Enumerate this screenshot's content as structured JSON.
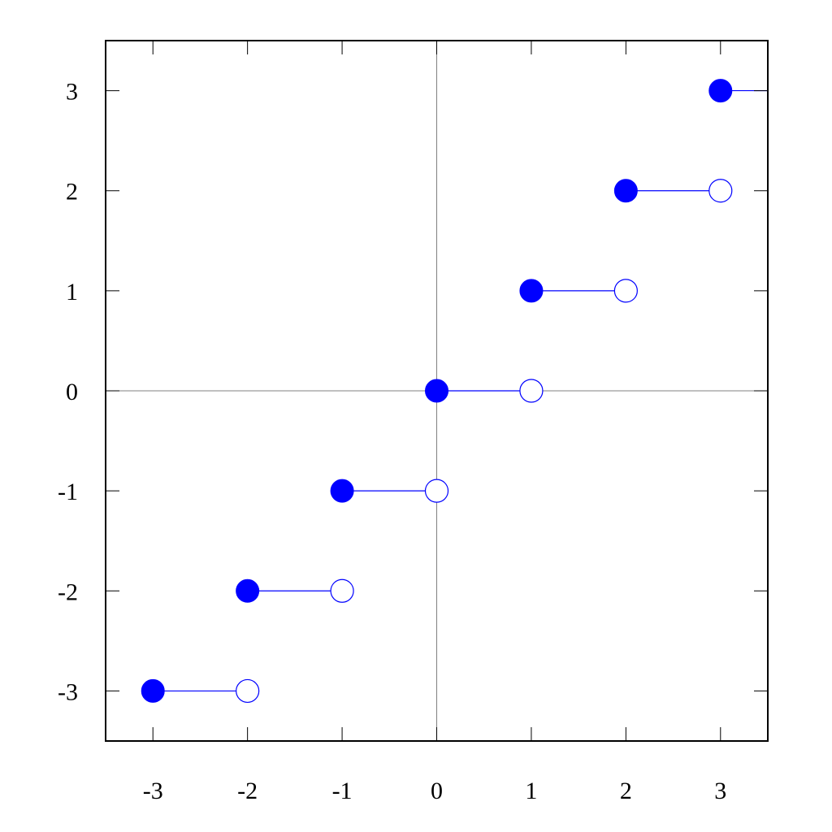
{
  "chart_data": {
    "type": "scatter",
    "description_kind": "step function (floor)",
    "xlim": [
      -3.5,
      3.5
    ],
    "ylim": [
      -3.5,
      3.5
    ],
    "x_ticks": [
      -3,
      -2,
      -1,
      0,
      1,
      2,
      3
    ],
    "y_ticks": [
      -3,
      -2,
      -1,
      0,
      1,
      2,
      3
    ],
    "x_tick_labels": [
      "-3",
      "-2",
      "-1",
      "0",
      "1",
      "2",
      "3"
    ],
    "y_tick_labels": [
      "-3",
      "-2",
      "-1",
      "0",
      "1",
      "2",
      "3"
    ],
    "grid": false,
    "zero_axes": true,
    "title": "",
    "xlabel": "",
    "ylabel": "",
    "segments": [
      {
        "x_start": -3,
        "x_end": -2,
        "y": -3,
        "start_closed": true,
        "end_closed": false
      },
      {
        "x_start": -2,
        "x_end": -1,
        "y": -2,
        "start_closed": true,
        "end_closed": false
      },
      {
        "x_start": -1,
        "x_end": 0,
        "y": -1,
        "start_closed": true,
        "end_closed": false
      },
      {
        "x_start": 0,
        "x_end": 1,
        "y": 0,
        "start_closed": true,
        "end_closed": false
      },
      {
        "x_start": 1,
        "x_end": 2,
        "y": 1,
        "start_closed": true,
        "end_closed": false
      },
      {
        "x_start": 2,
        "x_end": 3,
        "y": 2,
        "start_closed": true,
        "end_closed": false
      },
      {
        "x_start": 3,
        "x_end": 3.5,
        "y": 3,
        "start_closed": true,
        "end_closed": null
      }
    ],
    "colors": {
      "series": "#0000ff",
      "axis": "#000000",
      "zero_line": "#808080"
    }
  }
}
